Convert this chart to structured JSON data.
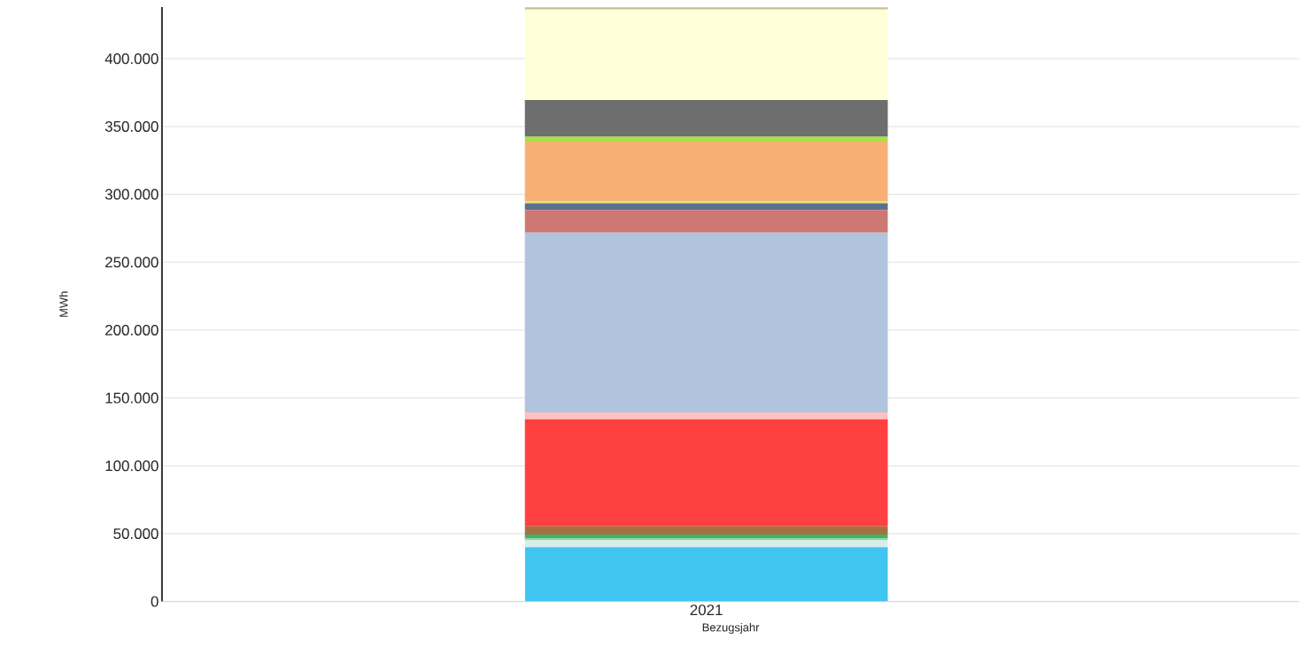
{
  "chart_data": {
    "type": "bar",
    "stacked": true,
    "xlabel": "Bezugsjahr",
    "ylabel": "MWh",
    "categories": [
      "2021"
    ],
    "series": [
      {
        "color": "#40c4f0",
        "values": [
          40000
        ]
      },
      {
        "color": "#d8ecee",
        "values": [
          5000
        ]
      },
      {
        "color": "#90d890",
        "values": [
          1300
        ]
      },
      {
        "color": "#3cb36a",
        "values": [
          3000
        ]
      },
      {
        "color": "#a57040",
        "values": [
          6000
        ]
      },
      {
        "color": "#ff4040",
        "values": [
          79000
        ]
      },
      {
        "color": "#ffc0c0",
        "values": [
          5000
        ]
      },
      {
        "color": "#b0c4de",
        "values": [
          132500
        ]
      },
      {
        "color": "#cd7872",
        "values": [
          16700
        ]
      },
      {
        "color": "#5a7090",
        "values": [
          4800
        ]
      },
      {
        "color": "#e8d870",
        "values": [
          1500
        ]
      },
      {
        "color": "#f7af74",
        "values": [
          44100
        ]
      },
      {
        "color": "#a8e040",
        "values": [
          3500
        ]
      },
      {
        "color": "#6e6e6e",
        "values": [
          27100
        ]
      },
      {
        "color": "#ffffd8",
        "values": [
          66700
        ]
      },
      {
        "color": "#c8c090",
        "values": [
          1700
        ]
      }
    ],
    "ylim": [
      0,
      438000
    ],
    "yticks": [
      0,
      {
        "value": 50000,
        "label": "50.000"
      },
      {
        "value": 100000,
        "label": "100.000"
      },
      {
        "value": 150000,
        "label": "150.000"
      },
      {
        "value": 200000,
        "label": "200.000"
      },
      {
        "value": 250000,
        "label": "250.000"
      },
      {
        "value": 300000,
        "label": "300.000"
      },
      {
        "value": 350000,
        "label": "350.000"
      },
      {
        "value": 400000,
        "label": "400.000"
      }
    ],
    "grid": "y"
  }
}
